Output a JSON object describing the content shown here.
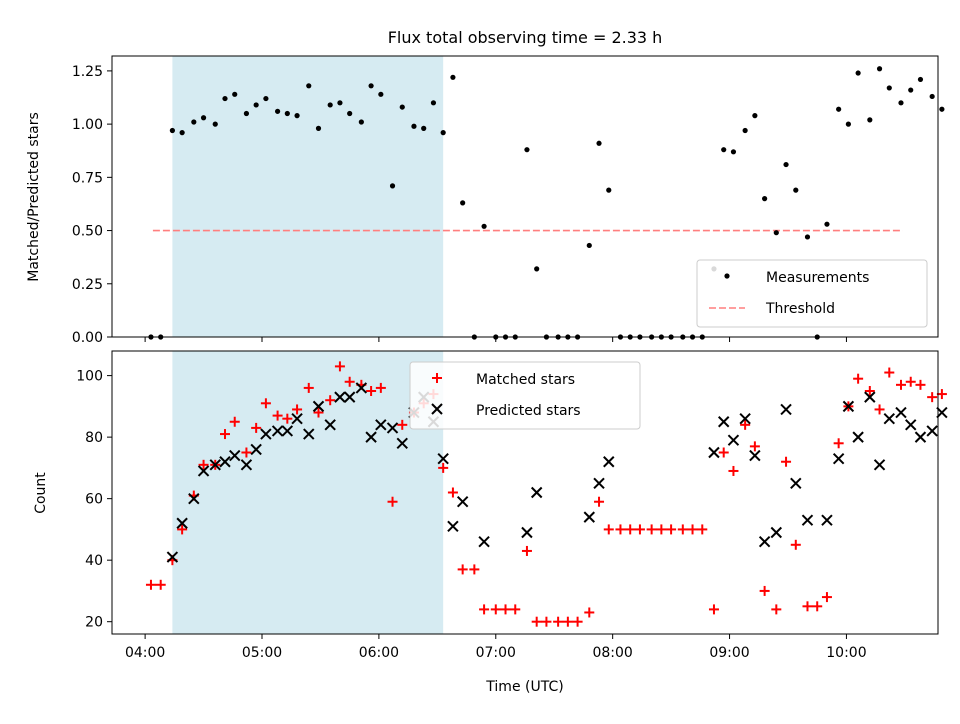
{
  "chart_data": [
    {
      "type": "scatter",
      "title": "Flux total observing time = 2.33 h",
      "ylabel": "Matched/Predicted stars",
      "xlabel": "",
      "xlim": [
        "03:43",
        "10:47"
      ],
      "ylim": [
        0,
        1.32
      ],
      "y_ticks": [
        "0.00",
        "0.25",
        "0.50",
        "0.75",
        "1.00",
        "1.25"
      ],
      "y_tick_values": [
        0,
        0.25,
        0.5,
        0.75,
        1.0,
        1.25
      ],
      "x_tick_values": [
        "04:00",
        "05:00",
        "06:00",
        "07:00",
        "08:00",
        "09:00",
        "10:00"
      ],
      "highlight_span": [
        "04:14",
        "06:33"
      ],
      "highlight_color": "#add8e6",
      "legend_position": "lower right",
      "legend": [
        {
          "label": "Measurements",
          "marker": "dot",
          "color": "#000000"
        },
        {
          "label": "Threshold",
          "marker": "dashed-line",
          "color": "#ff7f7f"
        }
      ],
      "threshold": {
        "value": 0.5,
        "x_start": "04:04",
        "x_end": "10:29",
        "color": "#ff7f7f"
      },
      "series": [
        {
          "name": "Measurements",
          "color": "#000000",
          "points": [
            [
              "04:03",
              0
            ],
            [
              "04:08",
              0
            ],
            [
              "04:14",
              0.97
            ],
            [
              "04:19",
              0.96
            ],
            [
              "04:25",
              1.01
            ],
            [
              "04:30",
              1.03
            ],
            [
              "04:36",
              1.0
            ],
            [
              "04:41",
              1.12
            ],
            [
              "04:46",
              1.14
            ],
            [
              "04:52",
              1.05
            ],
            [
              "04:57",
              1.09
            ],
            [
              "05:02",
              1.12
            ],
            [
              "05:08",
              1.06
            ],
            [
              "05:13",
              1.05
            ],
            [
              "05:18",
              1.04
            ],
            [
              "05:24",
              1.18
            ],
            [
              "05:29",
              0.98
            ],
            [
              "05:35",
              1.09
            ],
            [
              "05:40",
              1.1
            ],
            [
              "05:45",
              1.05
            ],
            [
              "05:51",
              1.01
            ],
            [
              "05:56",
              1.18
            ],
            [
              "06:01",
              1.14
            ],
            [
              "06:07",
              0.71
            ],
            [
              "06:12",
              1.08
            ],
            [
              "06:18",
              0.99
            ],
            [
              "06:23",
              0.98
            ],
            [
              "06:28",
              1.1
            ],
            [
              "06:33",
              0.96
            ],
            [
              "06:38",
              1.22
            ],
            [
              "06:43",
              0.63
            ],
            [
              "06:49",
              0
            ],
            [
              "06:54",
              0.52
            ],
            [
              "07:00",
              0
            ],
            [
              "07:05",
              0
            ],
            [
              "07:10",
              0
            ],
            [
              "07:16",
              0.88
            ],
            [
              "07:21",
              0.32
            ],
            [
              "07:26",
              0
            ],
            [
              "07:32",
              0
            ],
            [
              "07:37",
              0
            ],
            [
              "07:42",
              0
            ],
            [
              "07:48",
              0.43
            ],
            [
              "07:53",
              0.91
            ],
            [
              "07:58",
              0.69
            ],
            [
              "08:04",
              0
            ],
            [
              "08:09",
              0
            ],
            [
              "08:14",
              0
            ],
            [
              "08:20",
              0
            ],
            [
              "08:25",
              0
            ],
            [
              "08:30",
              0
            ],
            [
              "08:36",
              0
            ],
            [
              "08:41",
              0
            ],
            [
              "08:46",
              0
            ],
            [
              "08:52",
              0.32
            ],
            [
              "08:57",
              0.88
            ],
            [
              "09:02",
              0.87
            ],
            [
              "09:08",
              0.97
            ],
            [
              "09:13",
              1.04
            ],
            [
              "09:18",
              0.65
            ],
            [
              "09:24",
              0.49
            ],
            [
              "09:29",
              0.81
            ],
            [
              "09:34",
              0.69
            ],
            [
              "09:40",
              0.47
            ],
            [
              "09:45",
              0
            ],
            [
              "09:50",
              0.53
            ],
            [
              "09:56",
              1.07
            ],
            [
              "10:01",
              1.0
            ],
            [
              "10:06",
              1.24
            ],
            [
              "10:12",
              1.02
            ],
            [
              "10:17",
              1.26
            ],
            [
              "10:22",
              1.17
            ],
            [
              "10:28",
              1.1
            ],
            [
              "10:33",
              1.16
            ],
            [
              "10:38",
              1.21
            ],
            [
              "10:44",
              1.13
            ],
            [
              "10:49",
              1.07
            ]
          ]
        }
      ]
    },
    {
      "type": "scatter",
      "xlabel": "Time (UTC)",
      "ylabel": "Count",
      "xlim": [
        "03:43",
        "10:47"
      ],
      "ylim": [
        16,
        108
      ],
      "y_ticks": [
        "20",
        "40",
        "60",
        "80",
        "100"
      ],
      "y_tick_values": [
        20,
        40,
        60,
        80,
        100
      ],
      "x_ticks": [
        "04:00",
        "05:00",
        "06:00",
        "07:00",
        "08:00",
        "09:00",
        "10:00"
      ],
      "x_tick_values": [
        "04:00",
        "05:00",
        "06:00",
        "07:00",
        "08:00",
        "09:00",
        "10:00"
      ],
      "highlight_span": [
        "04:14",
        "06:33"
      ],
      "highlight_color": "#add8e6",
      "legend_position": "upper center",
      "legend": [
        {
          "label": "Matched stars",
          "marker": "plus",
          "color": "#ff0000"
        },
        {
          "label": "Predicted stars",
          "marker": "x",
          "color": "#000000"
        }
      ],
      "series": [
        {
          "name": "Matched stars",
          "color": "#ff0000",
          "points": [
            [
              "04:03",
              32
            ],
            [
              "04:08",
              32
            ],
            [
              "04:14",
              40
            ],
            [
              "04:19",
              50
            ],
            [
              "04:25",
              61
            ],
            [
              "04:30",
              71
            ],
            [
              "04:36",
              71
            ],
            [
              "04:41",
              81
            ],
            [
              "04:46",
              85
            ],
            [
              "04:52",
              75
            ],
            [
              "04:57",
              83
            ],
            [
              "05:02",
              91
            ],
            [
              "05:08",
              87
            ],
            [
              "05:13",
              86
            ],
            [
              "05:18",
              89
            ],
            [
              "05:24",
              96
            ],
            [
              "05:29",
              88
            ],
            [
              "05:35",
              92
            ],
            [
              "05:40",
              103
            ],
            [
              "05:45",
              98
            ],
            [
              "05:51",
              97
            ],
            [
              "05:56",
              95
            ],
            [
              "06:01",
              96
            ],
            [
              "06:07",
              59
            ],
            [
              "06:12",
              84
            ],
            [
              "06:18",
              88
            ],
            [
              "06:23",
              91
            ],
            [
              "06:28",
              94
            ],
            [
              "06:33",
              70
            ],
            [
              "06:38",
              62
            ],
            [
              "06:43",
              37
            ],
            [
              "06:49",
              37
            ],
            [
              "06:54",
              24
            ],
            [
              "07:00",
              24
            ],
            [
              "07:05",
              24
            ],
            [
              "07:10",
              24
            ],
            [
              "07:16",
              43
            ],
            [
              "07:21",
              20
            ],
            [
              "07:26",
              20
            ],
            [
              "07:32",
              20
            ],
            [
              "07:37",
              20
            ],
            [
              "07:42",
              20
            ],
            [
              "07:48",
              23
            ],
            [
              "07:53",
              59
            ],
            [
              "07:58",
              50
            ],
            [
              "08:04",
              50
            ],
            [
              "08:09",
              50
            ],
            [
              "08:14",
              50
            ],
            [
              "08:20",
              50
            ],
            [
              "08:25",
              50
            ],
            [
              "08:30",
              50
            ],
            [
              "08:36",
              50
            ],
            [
              "08:41",
              50
            ],
            [
              "08:46",
              50
            ],
            [
              "08:52",
              24
            ],
            [
              "08:57",
              75
            ],
            [
              "09:02",
              69
            ],
            [
              "09:08",
              84
            ],
            [
              "09:13",
              77
            ],
            [
              "09:18",
              30
            ],
            [
              "09:24",
              24
            ],
            [
              "09:29",
              72
            ],
            [
              "09:34",
              45
            ],
            [
              "09:40",
              25
            ],
            [
              "09:45",
              25
            ],
            [
              "09:50",
              28
            ],
            [
              "09:56",
              78
            ],
            [
              "10:01",
              90
            ],
            [
              "10:06",
              99
            ],
            [
              "10:12",
              95
            ],
            [
              "10:17",
              89
            ],
            [
              "10:22",
              101
            ],
            [
              "10:28",
              97
            ],
            [
              "10:33",
              98
            ],
            [
              "10:38",
              97
            ],
            [
              "10:44",
              93
            ],
            [
              "10:49",
              94
            ]
          ]
        },
        {
          "name": "Predicted stars",
          "color": "#000000",
          "points": [
            [
              "04:14",
              41
            ],
            [
              "04:19",
              52
            ],
            [
              "04:25",
              60
            ],
            [
              "04:30",
              69
            ],
            [
              "04:36",
              71
            ],
            [
              "04:41",
              72
            ],
            [
              "04:46",
              74
            ],
            [
              "04:52",
              71
            ],
            [
              "04:57",
              76
            ],
            [
              "05:02",
              81
            ],
            [
              "05:08",
              82
            ],
            [
              "05:13",
              82
            ],
            [
              "05:18",
              86
            ],
            [
              "05:24",
              81
            ],
            [
              "05:29",
              90
            ],
            [
              "05:35",
              84
            ],
            [
              "05:40",
              93
            ],
            [
              "05:45",
              93
            ],
            [
              "05:51",
              96
            ],
            [
              "05:56",
              80
            ],
            [
              "06:01",
              84
            ],
            [
              "06:07",
              83
            ],
            [
              "06:12",
              78
            ],
            [
              "06:18",
              88
            ],
            [
              "06:23",
              93
            ],
            [
              "06:28",
              85
            ],
            [
              "06:33",
              73
            ],
            [
              "06:38",
              51
            ],
            [
              "06:43",
              59
            ],
            [
              "06:54",
              46
            ],
            [
              "07:16",
              49
            ],
            [
              "07:21",
              62
            ],
            [
              "07:48",
              54
            ],
            [
              "07:53",
              65
            ],
            [
              "07:58",
              72
            ],
            [
              "08:52",
              75
            ],
            [
              "08:57",
              85
            ],
            [
              "09:02",
              79
            ],
            [
              "09:08",
              86
            ],
            [
              "09:13",
              74
            ],
            [
              "09:18",
              46
            ],
            [
              "09:24",
              49
            ],
            [
              "09:29",
              89
            ],
            [
              "09:34",
              65
            ],
            [
              "09:40",
              53
            ],
            [
              "09:50",
              53
            ],
            [
              "09:56",
              73
            ],
            [
              "10:01",
              90
            ],
            [
              "10:06",
              80
            ],
            [
              "10:12",
              93
            ],
            [
              "10:17",
              71
            ],
            [
              "10:22",
              86
            ],
            [
              "10:28",
              88
            ],
            [
              "10:33",
              84
            ],
            [
              "10:38",
              80
            ],
            [
              "10:44",
              82
            ],
            [
              "10:49",
              88
            ]
          ]
        }
      ]
    }
  ]
}
